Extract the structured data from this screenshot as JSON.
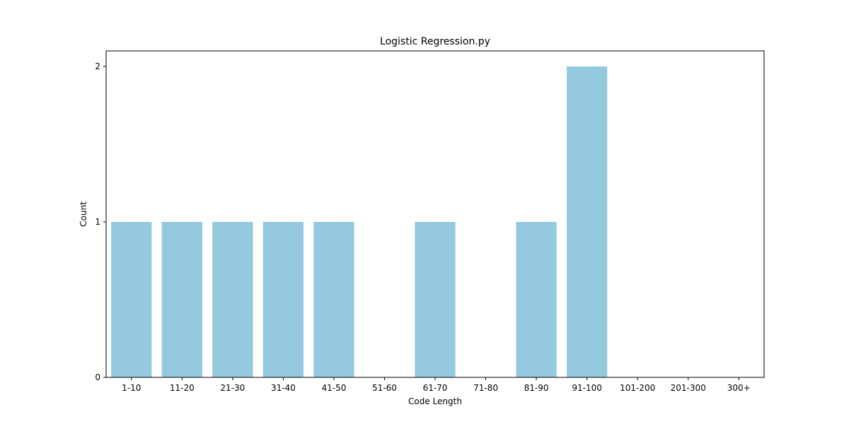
{
  "chart_data": {
    "type": "bar",
    "title": "Logistic Regression.py",
    "xlabel": "Code Length",
    "ylabel": "Count",
    "categories": [
      "1-10",
      "11-20",
      "21-30",
      "31-40",
      "41-50",
      "51-60",
      "61-70",
      "71-80",
      "81-90",
      "91-100",
      "101-200",
      "201-300",
      "300+"
    ],
    "values": [
      1,
      1,
      1,
      1,
      1,
      0,
      1,
      0,
      1,
      2,
      0,
      0,
      0
    ],
    "ylim": [
      0,
      2.1
    ],
    "yticks": [
      0,
      1,
      2
    ],
    "grid": false,
    "bar_color": "#95c9df",
    "legend": null
  }
}
